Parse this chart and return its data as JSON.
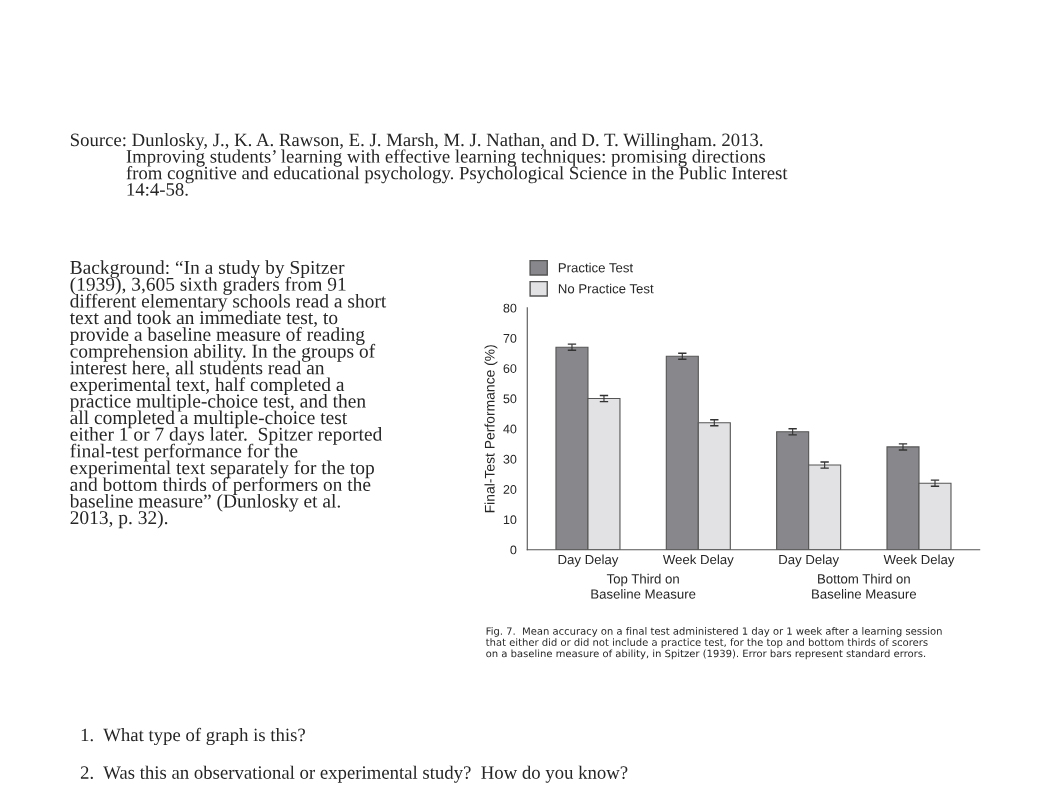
{
  "chart_data": {
    "type": "bar",
    "ylabel": "Final-Test Performance (%)",
    "categories": [
      "Day Delay",
      "Week Delay",
      "Day Delay",
      "Week Delay"
    ],
    "series": [
      {
        "name": "Practice Test",
        "color": "#88888c",
        "values": [
          67,
          64,
          39,
          34
        ],
        "errors": [
          1,
          1,
          1,
          1
        ]
      },
      {
        "name": "No Practice Test",
        "color": "#e2e2e4",
        "values": [
          50,
          42,
          28,
          22
        ],
        "errors": [
          1,
          1,
          1,
          1
        ]
      }
    ],
    "ylim": [
      0,
      80
    ],
    "yticks": [
      0,
      10,
      20,
      30,
      40,
      50,
      60,
      70,
      80
    ],
    "grid": false,
    "legend": "top left",
    "annotations": [
      "Source: Dunlosky, J., K. A. Rawson, E. J. Marsh, M. J. Nathan, and D. T. Willingham. 2013.\n            Improving students’ learning with effective learning techniques: promising directions\n            from cognitive and educational psychology. Psychological Science in the Public Interest\n            14:4-58.",
      "Background: “In a study by Spitzer\n(1939), 3,605 sixth graders from 91\ndifferent elementary schools read a short\ntext and took an immediate test, to\nprovide a baseline measure of reading\ncomprehension ability. In the groups of\ninterest here, all students read an\nexperimental text, half completed a\npractice multiple-choice test, and then\nall completed a multiple-choice test\neither 1 or 7 days later.  Spitzer reported\nfinal-test performance for the\nexperimental text separately for the top\nand bottom thirds of performers on the\nbaseline measure” (Dunlosky et al.\n2013, p. 32).",
      "Top Third on\nBaseline Measure",
      "Bottom Third on\nBaseline Measure",
      "Fig. 7.  Mean accuracy on a final test administered 1 day or 1 week after a learning session\nthat either did or did not include a practice test, for the top and bottom thirds of scorers\non a baseline measure of ability, in Spitzer (1939). Error bars represent standard errors.",
      "1.  What type of graph is this?",
      "2.  Was this an observational or experimental study?  How do you know?"
    ]
  }
}
